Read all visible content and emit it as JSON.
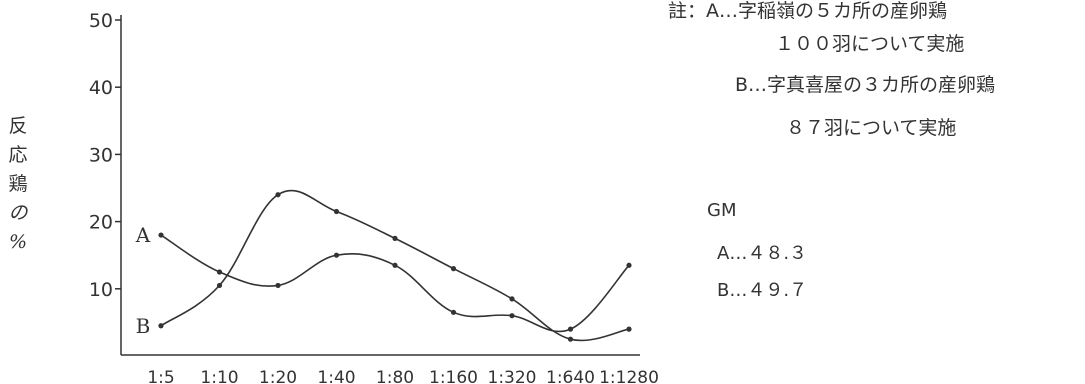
{
  "chart_data": {
    "type": "line",
    "categories": [
      "1:5",
      "1:10",
      "1:20",
      "1:40",
      "1:80",
      "1:160",
      "1:320",
      "1:640",
      "1:1280"
    ],
    "ylim": [
      0,
      50
    ],
    "yticks": [
      "10",
      "20",
      "30",
      "40",
      "50"
    ],
    "ylabel": "反応鶏の%",
    "ylabel_chars": [
      "反",
      "応",
      "鶏",
      "の",
      "%"
    ],
    "series": [
      {
        "name": "A",
        "values": [
          18,
          12.5,
          10.5,
          15,
          13.5,
          6.5,
          6,
          4,
          13.5
        ]
      },
      {
        "name": "B",
        "values": [
          4.5,
          10.5,
          24,
          21.5,
          17.5,
          13,
          8.5,
          2.5,
          4
        ]
      }
    ],
    "grid": false,
    "legend": "inline"
  },
  "notes": {
    "line1": "註：A…字稲嶺の５カ所の産卵鶏",
    "line2": "１００羽について実施",
    "line3": "B…字真喜屋の３カ所の産卵鶏",
    "line4": "８７羽について実施"
  },
  "gm": {
    "title": "GM",
    "a": "A…４８.３",
    "b": "B…４９.７"
  },
  "colors": {
    "ink": "#333333"
  }
}
